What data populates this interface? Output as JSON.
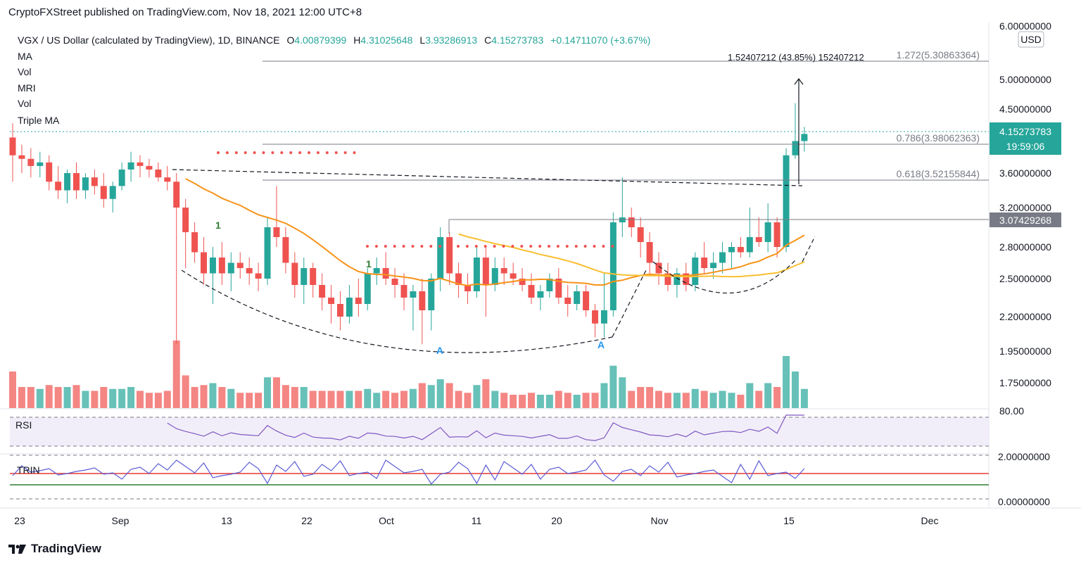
{
  "publisher": "CryptoFXStreet published on TradingView.com, Nov 18, 2021 12:00 UTC+8",
  "footer_brand": "TradingView",
  "colors": {
    "up": "#26a69a",
    "down": "#ef5350",
    "ma_orange": "#f7931a",
    "ma_yellow": "#f9bf32",
    "rsi": "#7e57c2",
    "trin": "#5b5bd6",
    "axis_badge": "#26a69a"
  },
  "legend": {
    "symbol": "VGX / US Dollar (calculated by TradingView), 1D, BINANCE",
    "o_label": "O",
    "o_val": "4.00879399",
    "h_label": "H",
    "h_val": "4.31025648",
    "l_label": "L",
    "l_val": "3.93286913",
    "c_label": "C",
    "c_val": "4.15273783",
    "change": "+0.14711070 (+3.67%)",
    "indicators": [
      "MA",
      "Vol",
      "MRI",
      "Vol",
      "Triple MA"
    ]
  },
  "currency": "USD",
  "chart_data": {
    "type": "candlestick",
    "title": "VGX / US Dollar (calculated by TradingView), 1D, BINANCE",
    "y_axis_ticks": [
      "6.00000000",
      "5.00000000",
      "4.50000000",
      "3.60000000",
      "3.20000000",
      "2.80000000",
      "2.50000000",
      "2.20000000",
      "1.95000000",
      "1.75000000"
    ],
    "x_axis_ticks": [
      "23",
      "Sep",
      "13",
      "22",
      "Oct",
      "11",
      "20",
      "Nov",
      "15",
      "Dec"
    ],
    "last_price": "4.15273783",
    "countdown": "19:59:06",
    "level_label": "3.07429268",
    "fib_levels": [
      {
        "label": "1.272(5.30863364)",
        "value": 5.30863364
      },
      {
        "label": "0.786(3.98062363)",
        "value": 3.98062363
      },
      {
        "label": "0.618(3.52155844)",
        "value": 3.52155844
      }
    ],
    "measure_label": "1.52407212 (43.85%) 152407212",
    "signal_labels": [
      "1",
      "1",
      "A",
      "A"
    ],
    "candles": [
      [
        4.1,
        4.3,
        3.5,
        3.85
      ],
      [
        3.85,
        4.0,
        3.6,
        3.8
      ],
      [
        3.8,
        3.95,
        3.55,
        3.7
      ],
      [
        3.7,
        3.9,
        3.55,
        3.75
      ],
      [
        3.75,
        3.85,
        3.4,
        3.5
      ],
      [
        3.5,
        3.7,
        3.3,
        3.4
      ],
      [
        3.4,
        3.65,
        3.25,
        3.6
      ],
      [
        3.6,
        3.75,
        3.3,
        3.4
      ],
      [
        3.4,
        3.6,
        3.3,
        3.55
      ],
      [
        3.55,
        3.65,
        3.35,
        3.45
      ],
      [
        3.45,
        3.6,
        3.2,
        3.3
      ],
      [
        3.3,
        3.5,
        3.15,
        3.45
      ],
      [
        3.45,
        3.75,
        3.4,
        3.65
      ],
      [
        3.65,
        3.9,
        3.5,
        3.75
      ],
      [
        3.75,
        3.85,
        3.55,
        3.7
      ],
      [
        3.7,
        3.8,
        3.55,
        3.65
      ],
      [
        3.65,
        3.75,
        3.5,
        3.55
      ],
      [
        3.55,
        3.7,
        3.4,
        3.5
      ],
      [
        3.5,
        3.6,
        2.0,
        3.2
      ],
      [
        3.2,
        3.3,
        2.6,
        2.95
      ],
      [
        2.95,
        3.05,
        2.65,
        2.75
      ],
      [
        2.75,
        2.9,
        2.45,
        2.55
      ],
      [
        2.55,
        2.8,
        2.3,
        2.7
      ],
      [
        2.7,
        2.85,
        2.45,
        2.55
      ],
      [
        2.55,
        2.75,
        2.4,
        2.65
      ],
      [
        2.65,
        2.75,
        2.5,
        2.6
      ],
      [
        2.6,
        2.7,
        2.45,
        2.55
      ],
      [
        2.55,
        2.65,
        2.4,
        2.5
      ],
      [
        2.5,
        3.1,
        2.45,
        3.0
      ],
      [
        3.0,
        3.45,
        2.8,
        2.9
      ],
      [
        2.9,
        3.0,
        2.55,
        2.65
      ],
      [
        2.65,
        2.75,
        2.35,
        2.45
      ],
      [
        2.45,
        2.7,
        2.3,
        2.6
      ],
      [
        2.6,
        2.65,
        2.35,
        2.45
      ],
      [
        2.45,
        2.55,
        2.25,
        2.35
      ],
      [
        2.35,
        2.45,
        2.15,
        2.3
      ],
      [
        2.3,
        2.4,
        2.1,
        2.2
      ],
      [
        2.2,
        2.45,
        2.15,
        2.35
      ],
      [
        2.35,
        2.5,
        2.2,
        2.3
      ],
      [
        2.3,
        2.6,
        2.25,
        2.55
      ],
      [
        2.55,
        2.7,
        2.45,
        2.6
      ],
      [
        2.6,
        2.75,
        2.45,
        2.5
      ],
      [
        2.5,
        2.6,
        2.35,
        2.45
      ],
      [
        2.45,
        2.55,
        2.25,
        2.35
      ],
      [
        2.35,
        2.45,
        2.1,
        2.4
      ],
      [
        2.4,
        2.5,
        2.0,
        2.25
      ],
      [
        2.25,
        2.55,
        2.1,
        2.5
      ],
      [
        2.5,
        3.0,
        2.4,
        2.9
      ],
      [
        2.9,
        2.95,
        2.45,
        2.55
      ],
      [
        2.55,
        2.65,
        2.35,
        2.45
      ],
      [
        2.45,
        2.55,
        2.3,
        2.4
      ],
      [
        2.4,
        2.8,
        2.35,
        2.7
      ],
      [
        2.7,
        2.8,
        2.2,
        2.45
      ],
      [
        2.45,
        2.7,
        2.4,
        2.6
      ],
      [
        2.6,
        2.7,
        2.45,
        2.55
      ],
      [
        2.55,
        2.65,
        2.45,
        2.5
      ],
      [
        2.5,
        2.6,
        2.4,
        2.45
      ],
      [
        2.45,
        2.55,
        2.3,
        2.35
      ],
      [
        2.35,
        2.45,
        2.25,
        2.4
      ],
      [
        2.4,
        2.55,
        2.35,
        2.5
      ],
      [
        2.5,
        2.6,
        2.3,
        2.35
      ],
      [
        2.35,
        2.45,
        2.2,
        2.3
      ],
      [
        2.3,
        2.45,
        2.25,
        2.4
      ],
      [
        2.4,
        2.45,
        2.2,
        2.25
      ],
      [
        2.25,
        2.3,
        2.05,
        2.15
      ],
      [
        2.15,
        2.55,
        2.05,
        2.25
      ],
      [
        2.25,
        3.15,
        2.2,
        3.05
      ],
      [
        3.05,
        3.55,
        2.9,
        3.1
      ],
      [
        3.1,
        3.2,
        2.9,
        3.0
      ],
      [
        3.0,
        3.1,
        2.7,
        2.85
      ],
      [
        2.85,
        2.95,
        2.55,
        2.65
      ],
      [
        2.65,
        2.75,
        2.45,
        2.55
      ],
      [
        2.55,
        2.65,
        2.4,
        2.45
      ],
      [
        2.45,
        2.6,
        2.35,
        2.55
      ],
      [
        2.55,
        2.65,
        2.4,
        2.45
      ],
      [
        2.45,
        2.75,
        2.4,
        2.7
      ],
      [
        2.7,
        2.85,
        2.55,
        2.6
      ],
      [
        2.6,
        2.75,
        2.5,
        2.65
      ],
      [
        2.65,
        2.85,
        2.55,
        2.75
      ],
      [
        2.75,
        2.85,
        2.6,
        2.8
      ],
      [
        2.8,
        2.9,
        2.7,
        2.75
      ],
      [
        2.75,
        3.2,
        2.7,
        2.9
      ],
      [
        2.9,
        3.1,
        2.8,
        2.85
      ],
      [
        2.85,
        3.25,
        2.75,
        3.05
      ],
      [
        3.05,
        3.1,
        2.7,
        2.8
      ],
      [
        2.8,
        3.95,
        2.75,
        3.85
      ],
      [
        3.85,
        4.6,
        3.8,
        4.05
      ],
      [
        4.05,
        4.25,
        3.9,
        4.15
      ]
    ],
    "volume_scale_note": "relative"
  },
  "rsi": {
    "label": "RSI",
    "axis_label": "80.00"
  },
  "trin": {
    "label": "TRIN",
    "axis_top": "2.00000000",
    "axis_bottom": "0.00000000"
  }
}
